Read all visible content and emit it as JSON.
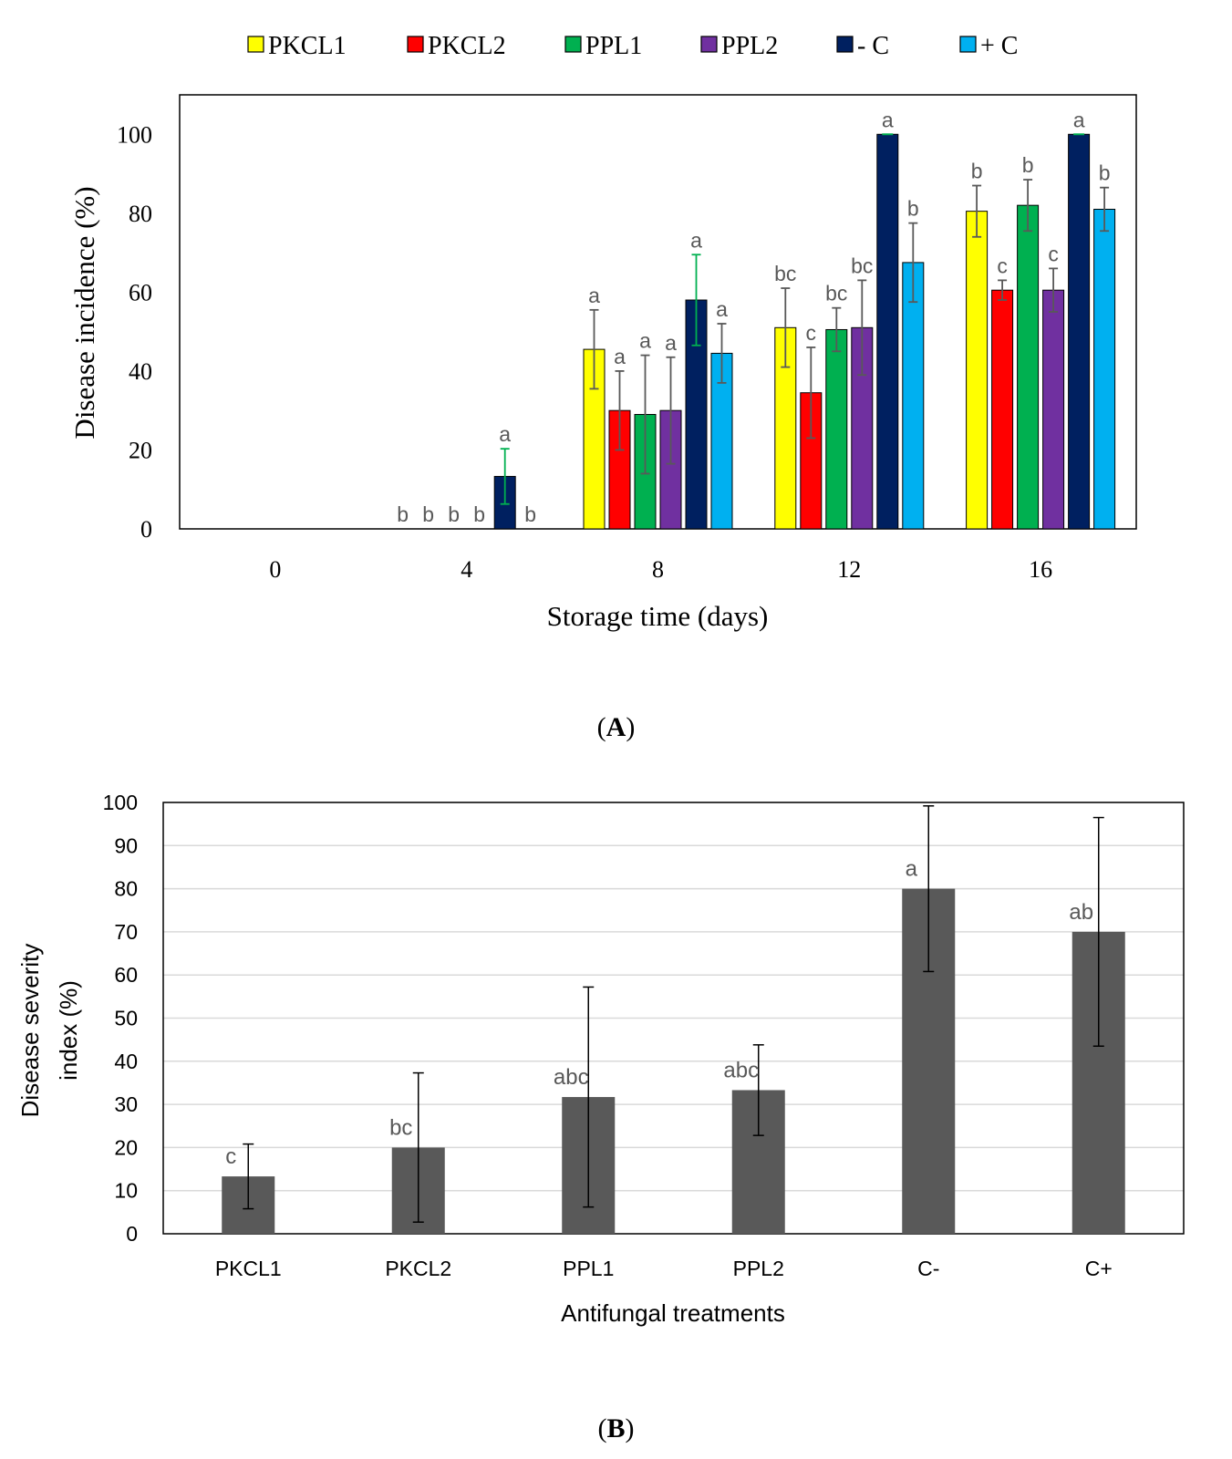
{
  "figure": {
    "panel_a_label_pre": "(",
    "panel_a_label_letter": "A",
    "panel_a_label_post": ")",
    "panel_b_label_pre": "(",
    "panel_b_label_letter": "B",
    "panel_b_label_post": ")"
  },
  "chart_data": [
    {
      "id": "A",
      "type": "bar",
      "title": "",
      "xlabel": "Storage time (days)",
      "ylabel": "Disease incidence (%)",
      "ylim": [
        0,
        110
      ],
      "yticks": [
        0,
        20,
        40,
        60,
        80,
        100
      ],
      "grid": false,
      "legend_position": "top",
      "categories": [
        "0",
        "4",
        "8",
        "12",
        "16"
      ],
      "series": [
        {
          "name": "PKCL1",
          "color": "#ffff00",
          "values": [
            0,
            0,
            45.5,
            51,
            80.5
          ],
          "errors": [
            0,
            0,
            10,
            10,
            6.5
          ],
          "letters": [
            "",
            "b",
            "a",
            "bc",
            "b"
          ]
        },
        {
          "name": "PKCL2",
          "color": "#ff0000",
          "values": [
            0,
            0,
            30,
            34.5,
            60.5
          ],
          "errors": [
            0,
            0,
            10,
            11.5,
            2.5
          ],
          "letters": [
            "",
            "b",
            "a",
            "c",
            "c"
          ]
        },
        {
          "name": "PPL1",
          "color": "#00b050",
          "values": [
            0,
            0,
            29,
            50.5,
            82
          ],
          "errors": [
            0,
            0,
            15,
            5.5,
            6.5
          ],
          "letters": [
            "",
            "b",
            "a",
            "bc",
            "b"
          ]
        },
        {
          "name": "PPL2",
          "color": "#7030a0",
          "values": [
            0,
            0,
            30,
            51,
            60.5
          ],
          "errors": [
            0,
            0,
            13.5,
            12,
            5.5
          ],
          "letters": [
            "",
            "b",
            "a",
            "bc",
            "c"
          ]
        },
        {
          "name": "- C",
          "color": "#002060",
          "values": [
            0,
            13.3,
            58,
            100,
            100
          ],
          "errors": [
            0,
            7,
            11.5,
            0,
            0
          ],
          "letters": [
            "",
            "a",
            "a",
            "a",
            "a"
          ]
        },
        {
          "name": "+ C",
          "color": "#00b0f0",
          "values": [
            0,
            0,
            44.5,
            67.5,
            81
          ],
          "errors": [
            0,
            0,
            7.5,
            10,
            5.5
          ],
          "letters": [
            "",
            "b",
            "a",
            "b",
            "b"
          ]
        }
      ]
    },
    {
      "id": "B",
      "type": "bar",
      "title": "",
      "xlabel": "Antifungal treatments",
      "ylabel_line1": "Disease severity",
      "ylabel_line2": "index (%)",
      "ylim": [
        0,
        100
      ],
      "yticks": [
        0,
        10,
        20,
        30,
        40,
        50,
        60,
        70,
        80,
        90,
        100
      ],
      "grid": true,
      "categories": [
        "PKCL1",
        "PKCL2",
        "PPL1",
        "PPL2",
        "C-",
        "C+"
      ],
      "series": [
        {
          "name": "Disease severity index",
          "color": "#595959",
          "values": [
            13.3,
            20,
            31.7,
            33.3,
            80,
            70
          ],
          "errors": [
            7.5,
            17.3,
            25.5,
            10.5,
            19.2,
            26.5
          ],
          "letters": [
            "c",
            "bc",
            "abc",
            "abc",
            "a",
            "ab"
          ]
        }
      ]
    }
  ]
}
